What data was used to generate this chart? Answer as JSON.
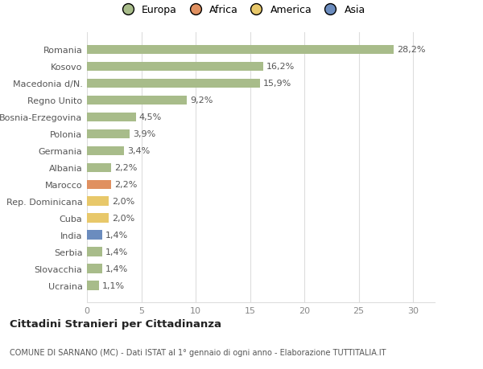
{
  "countries": [
    "Ucraina",
    "Slovacchia",
    "Serbia",
    "India",
    "Cuba",
    "Rep. Dominicana",
    "Marocco",
    "Albania",
    "Germania",
    "Polonia",
    "Bosnia-Erzegovina",
    "Regno Unito",
    "Macedonia d/N.",
    "Kosovo",
    "Romania"
  ],
  "values": [
    1.1,
    1.4,
    1.4,
    1.4,
    2.0,
    2.0,
    2.2,
    2.2,
    3.4,
    3.9,
    4.5,
    9.2,
    15.9,
    16.2,
    28.2
  ],
  "labels": [
    "1,1%",
    "1,4%",
    "1,4%",
    "1,4%",
    "2,0%",
    "2,0%",
    "2,2%",
    "2,2%",
    "3,4%",
    "3,9%",
    "4,5%",
    "9,2%",
    "15,9%",
    "16,2%",
    "28,2%"
  ],
  "colors": [
    "#a8bc8a",
    "#a8bc8a",
    "#a8bc8a",
    "#6b8cbe",
    "#e8c86a",
    "#e8c86a",
    "#e09060",
    "#a8bc8a",
    "#a8bc8a",
    "#a8bc8a",
    "#a8bc8a",
    "#a8bc8a",
    "#a8bc8a",
    "#a8bc8a",
    "#a8bc8a"
  ],
  "legend": {
    "Europa": "#a8bc8a",
    "Africa": "#e09060",
    "America": "#e8c86a",
    "Asia": "#6b8cbe"
  },
  "title": "Cittadini Stranieri per Cittadinanza",
  "subtitle": "COMUNE DI SARNANO (MC) - Dati ISTAT al 1° gennaio di ogni anno - Elaborazione TUTTITALIA.IT",
  "xlim": [
    0,
    32
  ],
  "xticks": [
    0,
    5,
    10,
    15,
    20,
    25,
    30
  ],
  "background_color": "#ffffff",
  "plot_bg_color": "#ffffff",
  "bar_height": 0.55,
  "grid_color": "#dddddd",
  "label_fontsize": 8,
  "tick_fontsize": 8,
  "legend_fontsize": 9
}
